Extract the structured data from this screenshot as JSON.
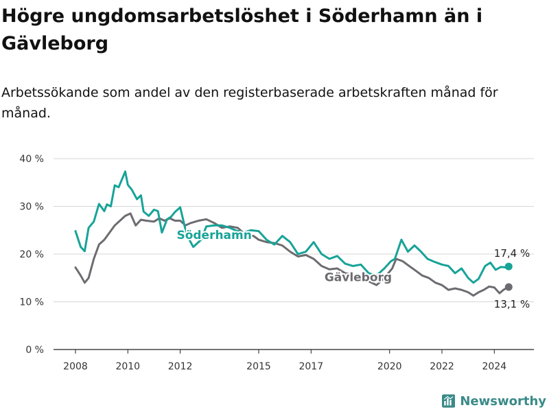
{
  "title": "Högre ungdomsarbetslöshet i Söderhamn än i Gävleborg",
  "subtitle": "Arbetssökande som andel av den registerbaserade arbetskraften månad för månad.",
  "logo_text": "Newsworthy",
  "colors": {
    "soderhamn": "#17a398",
    "gavleborg": "#6d6b70",
    "grid": "#d7d7d7",
    "axis": "#222222"
  },
  "chart_data": {
    "type": "line",
    "title": "Högre ungdomsarbetslöshet i Söderhamn än i Gävleborg",
    "subtitle": "Arbetssökande som andel av den registerbaserade arbetskraften månad för månad.",
    "xlabel": "",
    "ylabel": "",
    "ylim": [
      0,
      40
    ],
    "xlim": [
      2008.0,
      2024.7
    ],
    "yticks": [
      0,
      10,
      20,
      30,
      40
    ],
    "ytick_labels": [
      "0 %",
      "10 %",
      "20 %",
      "30 %",
      "40 %"
    ],
    "xticks": [
      2008,
      2010,
      2012,
      2015,
      2017,
      2020,
      2022,
      2024
    ],
    "xtick_labels": [
      "2008",
      "2010",
      "2012",
      "2015",
      "2017",
      "2020",
      "2022",
      "2024"
    ],
    "grid": true,
    "series": [
      {
        "name": "Söderhamn",
        "color": "#17a398",
        "end_label": "17,4 %",
        "x": [
          2008.0,
          2008.2,
          2008.35,
          2008.5,
          2008.7,
          2008.9,
          2009.1,
          2009.2,
          2009.35,
          2009.5,
          2009.65,
          2009.8,
          2009.9,
          2010.0,
          2010.15,
          2010.35,
          2010.5,
          2010.6,
          2010.8,
          2011.0,
          2011.15,
          2011.3,
          2011.5,
          2011.65,
          2011.8,
          2012.0,
          2012.25,
          2012.5,
          2012.8,
          2013.0,
          2013.3,
          2013.6,
          2013.9,
          2014.1,
          2014.4,
          2014.7,
          2015.0,
          2015.3,
          2015.6,
          2015.9,
          2016.2,
          2016.5,
          2016.8,
          2017.1,
          2017.4,
          2017.7,
          2018.0,
          2018.3,
          2018.6,
          2018.9,
          2019.2,
          2019.5,
          2019.8,
          2020.05,
          2020.2,
          2020.45,
          2020.7,
          2020.95,
          2021.2,
          2021.45,
          2021.7,
          2022.0,
          2022.25,
          2022.5,
          2022.75,
          2023.0,
          2023.2,
          2023.4,
          2023.65,
          2023.85,
          2024.05,
          2024.25,
          2024.45,
          2024.55
        ],
        "values": [
          24.8,
          21.5,
          20.6,
          25.5,
          26.8,
          30.5,
          29.0,
          30.4,
          30.0,
          34.4,
          34.0,
          36.0,
          37.3,
          34.5,
          33.5,
          31.5,
          32.3,
          28.9,
          28.0,
          29.3,
          29.0,
          24.5,
          27.3,
          27.8,
          28.8,
          29.8,
          24.0,
          21.5,
          23.0,
          25.8,
          26.0,
          26.0,
          25.5,
          25.0,
          24.5,
          25.0,
          24.8,
          23.0,
          22.0,
          23.8,
          22.5,
          20.0,
          20.5,
          22.5,
          20.0,
          19.0,
          19.6,
          18.0,
          17.5,
          17.8,
          16.0,
          15.5,
          17.0,
          18.5,
          19.0,
          23.0,
          20.5,
          21.8,
          20.5,
          19.0,
          18.4,
          17.8,
          17.5,
          16.0,
          17.0,
          15.0,
          14.0,
          14.8,
          17.5,
          18.2,
          16.7,
          17.3,
          17.2,
          17.4
        ]
      },
      {
        "name": "Gävleborg",
        "color": "#6d6b70",
        "end_label": "13,1 %",
        "x": [
          2008.0,
          2008.2,
          2008.35,
          2008.5,
          2008.7,
          2008.9,
          2009.1,
          2009.3,
          2009.5,
          2009.7,
          2009.9,
          2010.1,
          2010.3,
          2010.5,
          2010.7,
          2011.0,
          2011.2,
          2011.4,
          2011.6,
          2011.8,
          2012.0,
          2012.2,
          2012.4,
          2012.7,
          2013.0,
          2013.3,
          2013.6,
          2013.9,
          2014.2,
          2014.5,
          2014.8,
          2015.0,
          2015.3,
          2015.6,
          2015.9,
          2016.2,
          2016.5,
          2016.8,
          2017.1,
          2017.4,
          2017.7,
          2018.0,
          2018.3,
          2018.6,
          2018.9,
          2019.2,
          2019.5,
          2019.8,
          2020.1,
          2020.25,
          2020.5,
          2020.75,
          2021.0,
          2021.25,
          2021.5,
          2021.75,
          2022.0,
          2022.25,
          2022.5,
          2022.75,
          2023.0,
          2023.2,
          2023.4,
          2023.6,
          2023.8,
          2024.0,
          2024.2,
          2024.35,
          2024.55
        ],
        "values": [
          17.2,
          15.5,
          14.0,
          15.0,
          19.0,
          22.0,
          23.0,
          24.5,
          26.0,
          27.0,
          28.0,
          28.5,
          26.0,
          27.2,
          27.0,
          26.8,
          27.5,
          27.0,
          27.5,
          27.0,
          27.0,
          26.0,
          26.5,
          27.0,
          27.3,
          26.5,
          25.5,
          25.8,
          25.5,
          24.0,
          23.8,
          23.0,
          22.5,
          22.3,
          21.8,
          20.5,
          19.5,
          19.8,
          19.0,
          17.5,
          16.8,
          17.0,
          16.0,
          15.6,
          15.5,
          14.3,
          13.5,
          15.0,
          17.0,
          19.0,
          18.5,
          17.5,
          16.5,
          15.5,
          15.0,
          14.0,
          13.5,
          12.5,
          12.8,
          12.5,
          12.0,
          11.3,
          12.0,
          12.5,
          13.2,
          13.0,
          11.8,
          12.5,
          13.1
        ]
      }
    ],
    "annotations": [
      {
        "text": "Söderhamn",
        "x": 2013.3,
        "y": 23.2,
        "series": "Söderhamn"
      },
      {
        "text": "Gävleborg",
        "x": 2018.8,
        "y": 14.3,
        "series": "Gävleborg"
      }
    ]
  }
}
